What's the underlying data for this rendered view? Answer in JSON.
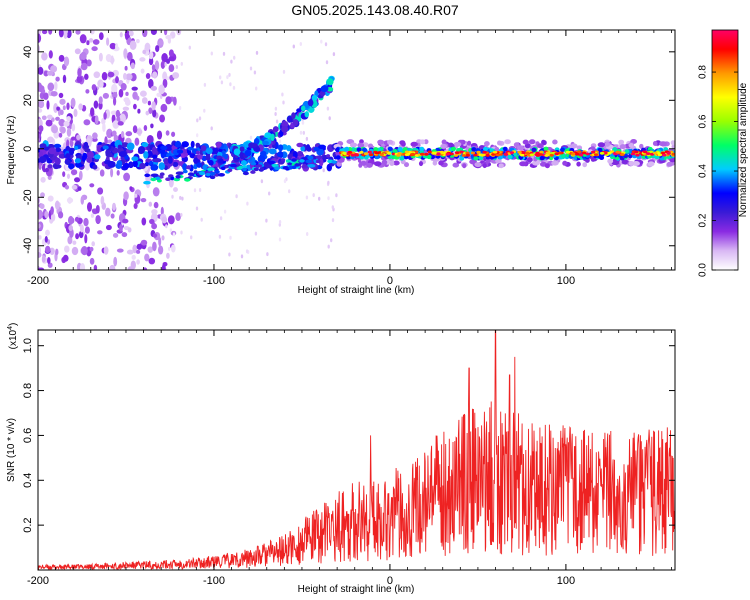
{
  "figure_title": "GN05.2025.143.08.40.R07",
  "chart_data": [
    {
      "type": "heatmap",
      "title": "GN05.2025.143.08.40.R07",
      "xlabel": "Height of straight line (km)",
      "ylabel": "Frequency (Hz)",
      "xlim": [
        -200,
        162
      ],
      "ylim": [
        -50,
        49
      ],
      "x_ticks": [
        -200,
        -100,
        0,
        100
      ],
      "y_ticks": [
        -40,
        -20,
        0,
        20,
        40
      ],
      "colorbar": {
        "label": "Normalized spectral amplitude",
        "range": [
          0,
          0.97
        ],
        "ticks": [
          0.0,
          0.2,
          0.4,
          0.6,
          0.8
        ],
        "colormap": [
          "#ffffff",
          "#d9b8f4",
          "#8a2be2",
          "#3a1bd6",
          "#0000ff",
          "#00ccff",
          "#00ff66",
          "#9aff00",
          "#ffff00",
          "#ff9900",
          "#ff0000",
          "#ff0066"
        ]
      },
      "features": [
        {
          "name": "dominant-band",
          "x_range": [
            -30,
            162
          ],
          "frequency": -2,
          "amplitude": 0.9
        },
        {
          "name": "broad-band",
          "x_range": [
            -200,
            -30
          ],
          "frequency": -3,
          "amplitude": 0.35
        },
        {
          "name": "upper-branch",
          "x_range": [
            -90,
            -30
          ],
          "frequency_range": [
            -2,
            30
          ],
          "amplitude": 0.35
        },
        {
          "name": "lower-branch",
          "x_range": [
            -140,
            -30
          ],
          "frequency_range": [
            -15,
            -3
          ],
          "amplitude": 0.4
        },
        {
          "name": "scatter-region",
          "x_range": [
            -200,
            -120
          ],
          "frequency_range": [
            -50,
            49
          ],
          "amplitude": 0.15
        }
      ]
    },
    {
      "type": "line",
      "xlabel": "Height of straight line (km)",
      "ylabel": "SNR (10 * v/v)",
      "y_scale_label": "(x10",
      "y_scale_exponent": "4",
      "y_scale_suffix": ")",
      "xlim": [
        -200,
        162
      ],
      "ylim": [
        0,
        1.07
      ],
      "x_ticks": [
        -200,
        -100,
        0,
        100
      ],
      "y_ticks": [
        0.2,
        0.4,
        0.6,
        0.8,
        1.0
      ],
      "series": [
        {
          "color": "#ee2222",
          "x": [
            -200,
            -180,
            -160,
            -140,
            -120,
            -100,
            -90,
            -80,
            -70,
            -60,
            -50,
            -40,
            -30,
            -20,
            -10,
            0,
            10,
            20,
            30,
            40,
            50,
            60,
            70,
            80,
            90,
            100,
            110,
            120,
            130,
            140,
            150,
            160,
            162
          ],
          "y": [
            0.015,
            0.015,
            0.02,
            0.025,
            0.03,
            0.04,
            0.05,
            0.06,
            0.08,
            0.1,
            0.14,
            0.18,
            0.22,
            0.25,
            0.26,
            0.28,
            0.3,
            0.34,
            0.4,
            0.45,
            0.45,
            0.48,
            0.45,
            0.42,
            0.42,
            0.4,
            0.4,
            0.38,
            0.4,
            0.38,
            0.4,
            0.4,
            0.38
          ],
          "peaks": [
            {
              "x": 60,
              "y": 1.07
            },
            {
              "x": 71,
              "y": 0.95
            },
            {
              "x": 45,
              "y": 0.9
            },
            {
              "x": 68,
              "y": 0.87
            },
            {
              "x": -11,
              "y": 0.6
            },
            {
              "x": 146,
              "y": 0.58
            },
            {
              "x": 161,
              "y": 0.5
            },
            {
              "x": 105,
              "y": 0.55
            }
          ]
        }
      ]
    }
  ]
}
